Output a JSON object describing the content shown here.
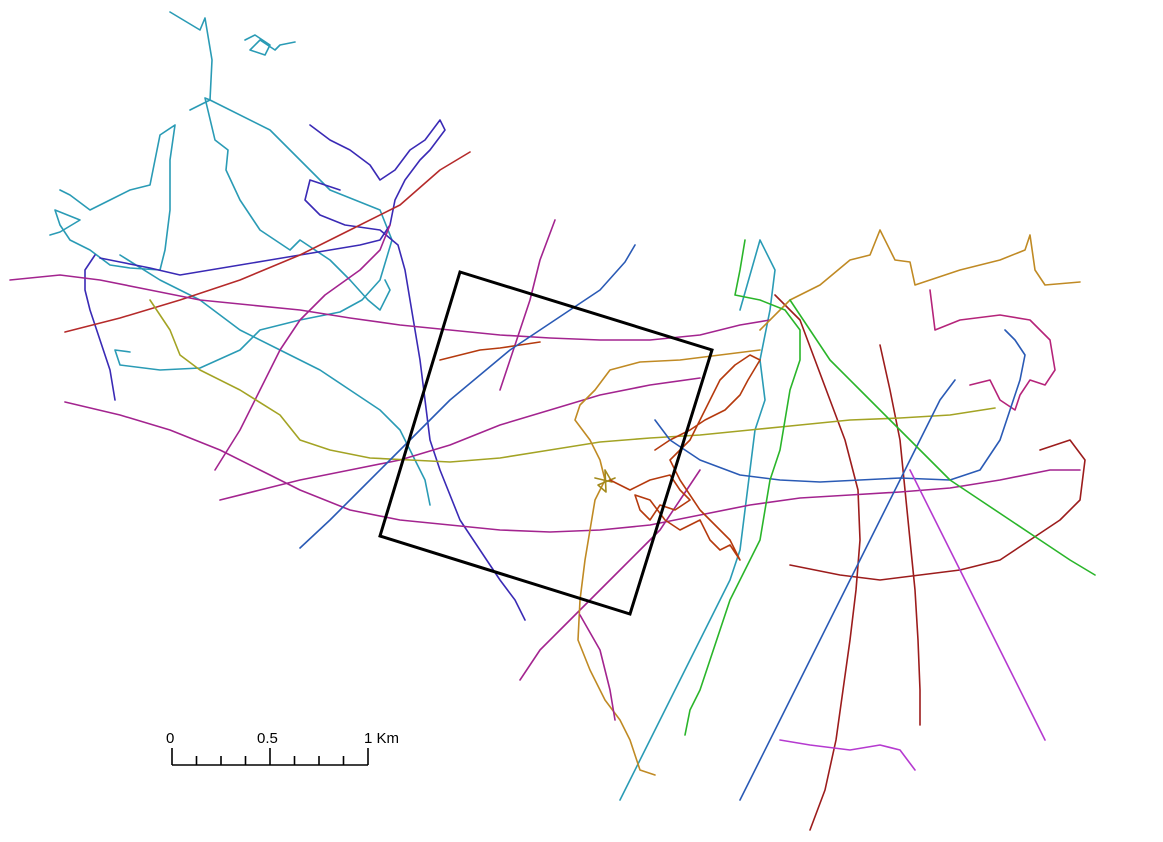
{
  "scale_bar": {
    "labels": [
      "0",
      "0.5",
      "1 Km"
    ]
  },
  "colors": {
    "study_area_frame": "#000000",
    "tracks": [
      "#2a9bb5",
      "#3a2ab5",
      "#b52a2a",
      "#a3248f",
      "#a3a324",
      "#c08a24",
      "#b53a0e",
      "#2a5ab5",
      "#2ab52a",
      "#b5247a",
      "#9c1c1c",
      "#b53ad0"
    ]
  },
  "icons": {
    "frame": "study-area-rectangle"
  }
}
